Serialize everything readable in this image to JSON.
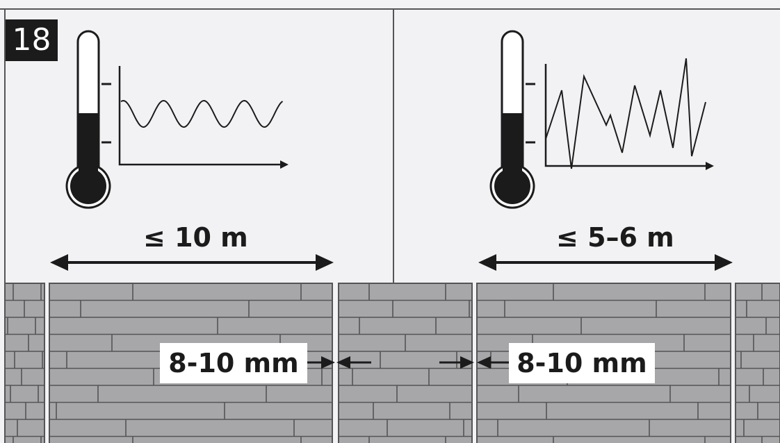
{
  "step_number": "18",
  "left_panel": {
    "range_label": "≤ 10 m",
    "gap_label": "8-10 mm",
    "temperature_pattern": "smooth-wave"
  },
  "right_panel": {
    "range_label": "≤ 5–6 m",
    "gap_label": "8-10 mm",
    "temperature_pattern": "erratic-zigzag"
  },
  "icons": [
    "thermometer-icon",
    "temperature-graph-icon",
    "double-arrow-icon",
    "gap-arrows-icon",
    "laminate-boards-icon"
  ],
  "colors": {
    "background": "#f2f2f4",
    "ink": "#1b1b1b",
    "board_fill": "#a7a7aa",
    "board_line": "#545456",
    "label_box": "#ffffff"
  }
}
